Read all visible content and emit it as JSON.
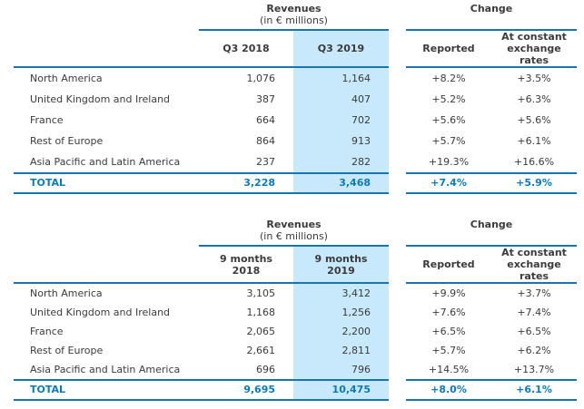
{
  "colors": {
    "line": "#1776b0",
    "highlight": "#c7e9fb",
    "total": "#0d7ab8",
    "text": "#3b3b3b"
  },
  "tables": [
    {
      "group": {
        "revenues": "Revenues",
        "revenues_sub": "(in € millions)",
        "change": "Change"
      },
      "columns": {
        "prev": "Q3 2018",
        "curr": "Q3 2019",
        "reported": "Reported",
        "constant": "At constant exchange rates"
      },
      "rows": [
        {
          "label": "North America",
          "prev": "1,076",
          "curr": "1,164",
          "reported": "+8.2%",
          "constant": "+3.5%"
        },
        {
          "label": "United Kingdom and Ireland",
          "prev": "387",
          "curr": "407",
          "reported": "+5.2%",
          "constant": "+6.3%"
        },
        {
          "label": "France",
          "prev": "664",
          "curr": "702",
          "reported": "+5.6%",
          "constant": "+5.6%"
        },
        {
          "label": "Rest of Europe",
          "prev": "864",
          "curr": "913",
          "reported": "+5.7%",
          "constant": "+6.1%"
        },
        {
          "label": "Asia Pacific and Latin America",
          "prev": "237",
          "curr": "282",
          "reported": "+19.3%",
          "constant": "+16.6%"
        }
      ],
      "total": {
        "label": "TOTAL",
        "prev": "3,228",
        "curr": "3,468",
        "reported": "+7.4%",
        "constant": "+5.9%"
      }
    },
    {
      "group": {
        "revenues": "Revenues",
        "revenues_sub": "(in € millions)",
        "change": "Change"
      },
      "columns": {
        "prev": "9 months\n2018",
        "curr": "9 months\n2019",
        "reported": "Reported",
        "constant": "At constant exchange rates"
      },
      "rows": [
        {
          "label": "North America",
          "prev": "3,105",
          "curr": "3,412",
          "reported": "+9.9%",
          "constant": "+3.7%"
        },
        {
          "label": "United Kingdom and Ireland",
          "prev": "1,168",
          "curr": "1,256",
          "reported": "+7.6%",
          "constant": "+7.4%"
        },
        {
          "label": "France",
          "prev": "2,065",
          "curr": "2,200",
          "reported": "+6.5%",
          "constant": "+6.5%"
        },
        {
          "label": "Rest of Europe",
          "prev": "2,661",
          "curr": "2,811",
          "reported": "+5.7%",
          "constant": "+6.2%"
        },
        {
          "label": "Asia Pacific and Latin America",
          "prev": "696",
          "curr": "796",
          "reported": "+14.5%",
          "constant": "+13.7%"
        }
      ],
      "total": {
        "label": "TOTAL",
        "prev": "9,695",
        "curr": "10,475",
        "reported": "+8.0%",
        "constant": "+6.1%"
      }
    }
  ]
}
